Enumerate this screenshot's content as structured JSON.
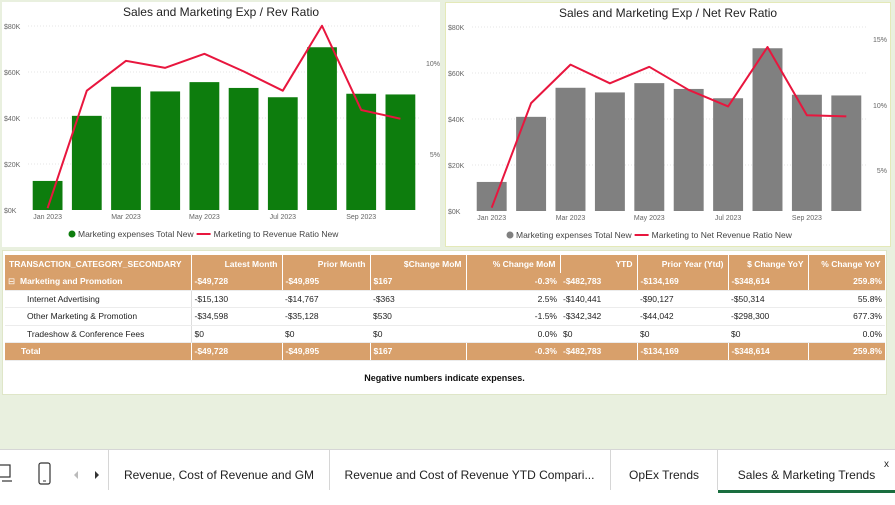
{
  "charts": [
    {
      "title": "Sales and Marketing Exp / Rev Ratio",
      "bar_color": "#0d7d0d",
      "line_color": "#e8163e",
      "y_left_ticks": [
        "$0K",
        "$20K",
        "$40K",
        "$60K",
        "$80K"
      ],
      "y_right_ticks": [
        "5%",
        "10%"
      ],
      "x_ticks": [
        "Jan 2023",
        "Mar 2023",
        "May 2023",
        "Jul 2023",
        "Sep 2023"
      ],
      "legend_bar": "Marketing expenses Total New",
      "legend_line": "Marketing to Revenue Ratio New"
    },
    {
      "title": "Sales and Marketing Exp / Net Rev Ratio",
      "bar_color": "#808080",
      "line_color": "#e8163e",
      "y_left_ticks": [
        "$0K",
        "$20K",
        "$40K",
        "$60K",
        "$80K"
      ],
      "y_right_ticks": [
        "5%",
        "10%",
        "15%"
      ],
      "x_ticks": [
        "Jan 2023",
        "Mar 2023",
        "May 2023",
        "Jul 2023",
        "Sep 2023"
      ],
      "legend_bar": "Marketing expenses Total New",
      "legend_line": "Marketing to Net Revenue Ratio New"
    }
  ],
  "chart_data": [
    {
      "type": "bar",
      "title": "Sales and Marketing Exp / Rev Ratio",
      "categories": [
        "Jan 2023",
        "Feb 2023",
        "Mar 2023",
        "Apr 2023",
        "May 2023",
        "Jun 2023",
        "Jul 2023",
        "Aug 2023",
        "Sep 2023",
        "Oct 2023"
      ],
      "ylim": [
        0,
        80000
      ],
      "y2lim": [
        2.0,
        12.6
      ],
      "series": [
        {
          "name": "Marketing expenses Total New",
          "type": "bar",
          "values": [
            12500,
            40500,
            53000,
            51000,
            55000,
            52500,
            48500,
            70000,
            50000,
            49700
          ]
        },
        {
          "name": "Marketing to Revenue Ratio New",
          "type": "line",
          "axis": "right",
          "values": [
            2.1,
            8.8,
            10.5,
            10.1,
            10.9,
            9.9,
            8.8,
            12.5,
            7.7,
            7.2
          ]
        }
      ]
    },
    {
      "type": "bar",
      "title": "Sales and Marketing Exp / Net Rev Ratio",
      "categories": [
        "Jan 2023",
        "Feb 2023",
        "Mar 2023",
        "Apr 2023",
        "May 2023",
        "Jun 2023",
        "Jul 2023",
        "Aug 2023",
        "Sep 2023",
        "Oct 2023"
      ],
      "ylim": [
        0,
        80000
      ],
      "y2lim": [
        0.5,
        17.4
      ],
      "series": [
        {
          "name": "Marketing expenses Total New",
          "type": "bar",
          "values": [
            12500,
            40500,
            53000,
            51000,
            55000,
            52500,
            48500,
            70000,
            50000,
            49700
          ]
        },
        {
          "name": "Marketing to Net Revenue Ratio New",
          "type": "line",
          "axis": "right",
          "values": [
            0.8,
            10.3,
            13.8,
            12.1,
            13.6,
            11.5,
            10.0,
            15.4,
            9.2,
            9.1
          ]
        }
      ]
    }
  ],
  "table": {
    "headers": [
      "TRANSACTION_CATEGORY_SECONDARY",
      "Latest Month",
      "Prior Month",
      "$Change MoM",
      "% Change MoM",
      "YTD",
      "Prior Year (Ytd)",
      "$ Change YoY",
      "% Change YoY"
    ],
    "group": {
      "toggle": "⊟",
      "cells": [
        "Marketing and Promotion",
        "-$49,728",
        "-$49,895",
        "$167",
        "-0.3%",
        "-$482,783",
        "-$134,169",
        "-$348,614",
        "259.8%"
      ]
    },
    "rows": [
      [
        "Internet Advertising",
        "-$15,130",
        "-$14,767",
        "-$363",
        "2.5%",
        "-$140,441",
        "-$90,127",
        "-$50,314",
        "55.8%"
      ],
      [
        "Other Marketing & Promotion",
        "-$34,598",
        "-$35,128",
        "$530",
        "-1.5%",
        "-$342,342",
        "-$44,042",
        "-$298,300",
        "677.3%"
      ],
      [
        "Tradeshow & Conference Fees",
        "$0",
        "$0",
        "$0",
        "0.0%",
        "$0",
        "$0",
        "$0",
        "0.0%"
      ]
    ],
    "total": [
      "Total",
      "-$49,728",
      "-$49,895",
      "$167",
      "-0.3%",
      "-$482,783",
      "-$134,169",
      "-$348,614",
      "259.8%"
    ],
    "note": "Negative numbers indicate expenses."
  },
  "tabs": {
    "items": [
      "Revenue, Cost of Revenue and GM",
      "Revenue and Cost of Revenue YTD Compari...",
      "OpEx Trends",
      "Sales & Marketing Trends"
    ],
    "active": 3,
    "close": "x"
  }
}
